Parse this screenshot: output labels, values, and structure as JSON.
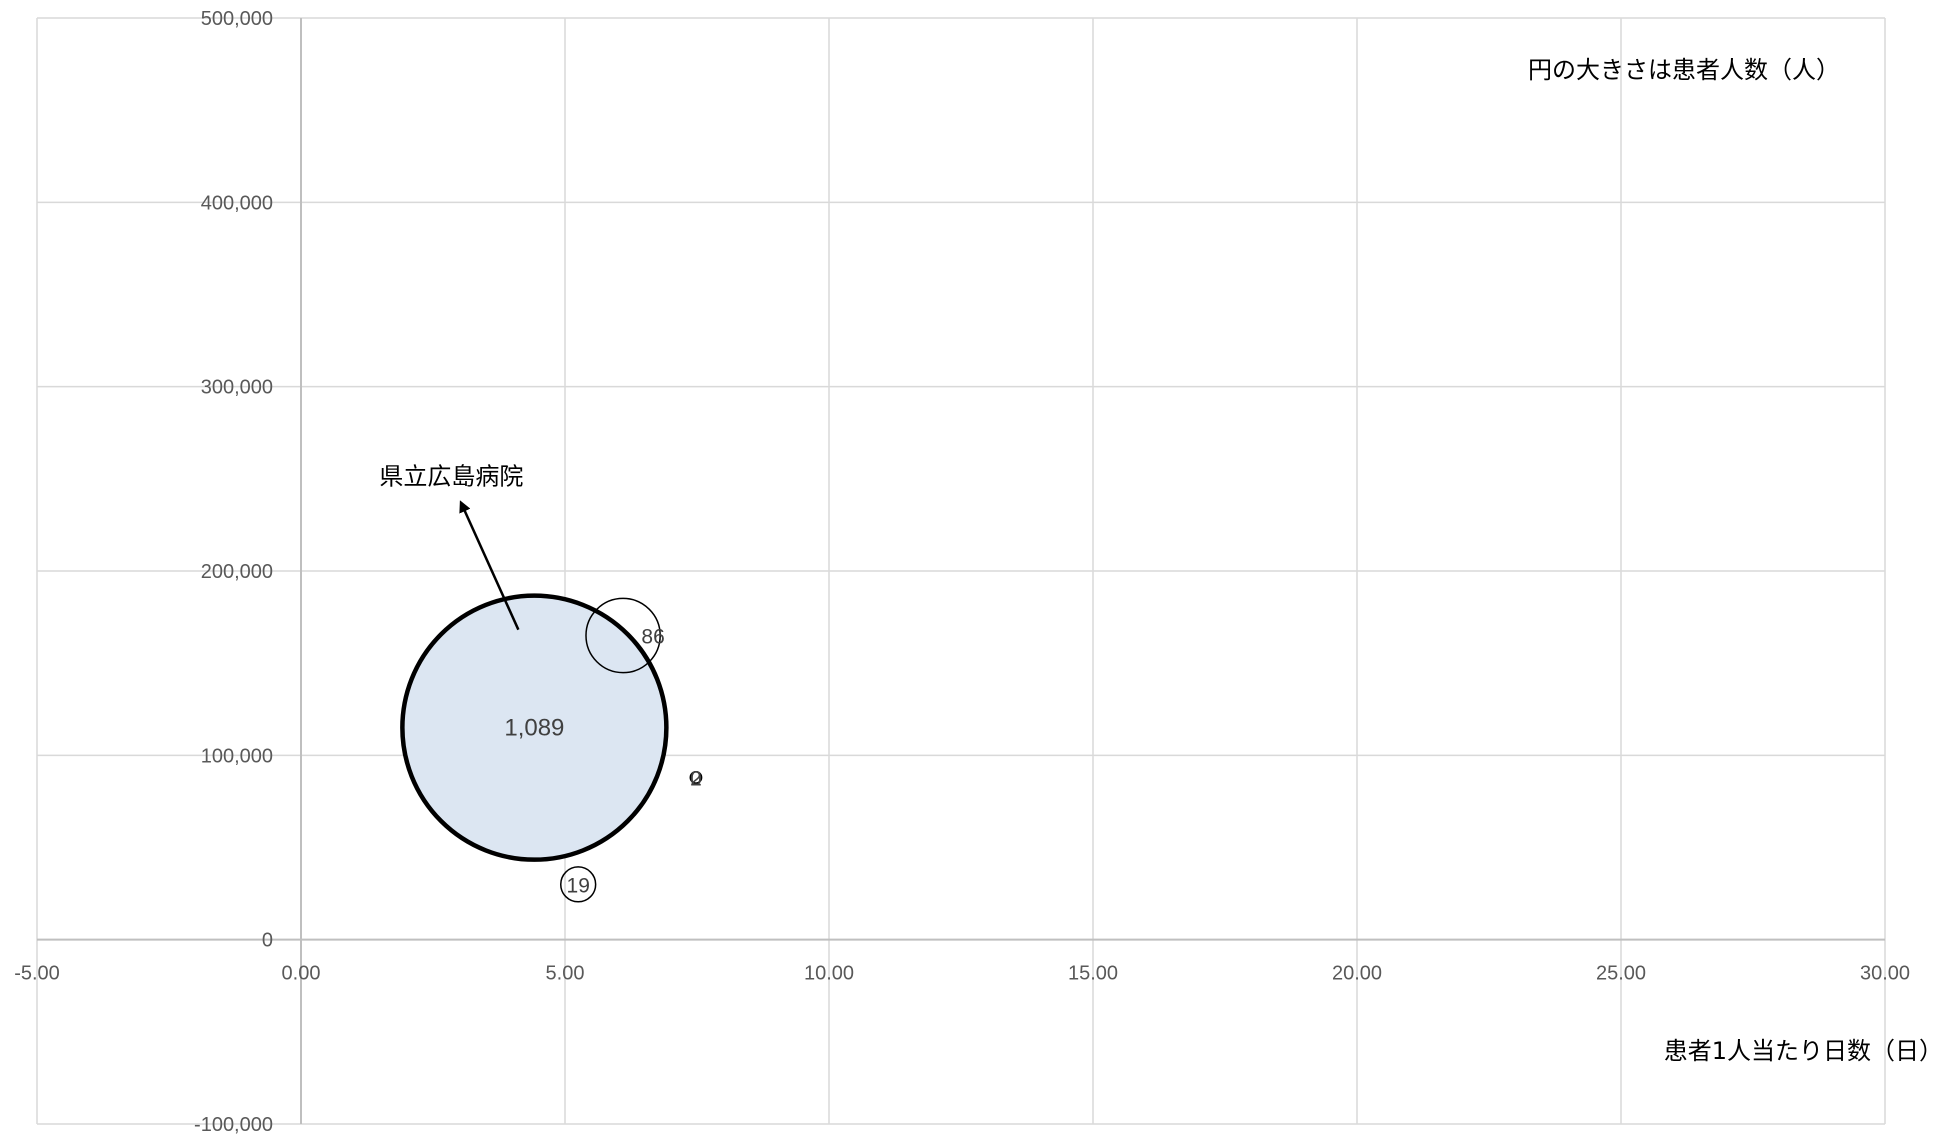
{
  "chart_data": {
    "type": "bubble",
    "title": "",
    "xlabel": "患者1人当たり日数（日）",
    "ylabel": "",
    "size_note": "円の大きさは患者人数（人）",
    "xlim": [
      -5,
      30
    ],
    "ylim": [
      -100000,
      500000
    ],
    "x_ticks": [
      "-5.00",
      "0.00",
      "5.00",
      "10.00",
      "15.00",
      "20.00",
      "25.00",
      "30.00"
    ],
    "y_ticks": [
      "-100,000",
      "0",
      "100,000",
      "200,000",
      "300,000",
      "400,000",
      "500,000"
    ],
    "grid": true,
    "points": [
      {
        "x": 4.42,
        "y": 115000,
        "size": 1089,
        "label": "1,089",
        "highlight": true
      },
      {
        "x": 6.1,
        "y": 165000,
        "size": 86,
        "label": "86",
        "highlight": false
      },
      {
        "x": 5.25,
        "y": 30000,
        "size": 19,
        "label": "19",
        "highlight": false
      },
      {
        "x": 7.48,
        "y": 88000,
        "size": 0,
        "label": "0",
        "highlight": false
      },
      {
        "x": 7.48,
        "y": 88000,
        "size": 2,
        "label": "2",
        "highlight": false
      }
    ],
    "annotation": {
      "text": "県立広島病院",
      "target_index": 0
    }
  },
  "colors": {
    "grid": "#d9d9d9",
    "axis": "#bfbfbf",
    "highlight_fill": "#dce6f2",
    "bubble_stroke": "#000000",
    "tick_text": "#595959"
  }
}
